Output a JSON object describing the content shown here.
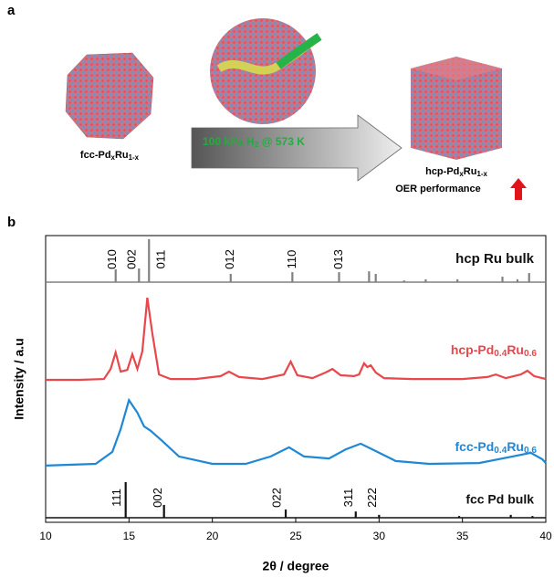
{
  "panel_a": {
    "label": "a",
    "left_particle": {
      "parts": [
        "fcc-Pd",
        "x",
        "Ru",
        "1-x"
      ]
    },
    "condition": {
      "parts": [
        "100 kPa H",
        "2",
        " @ 573 K"
      ]
    },
    "right_particle": {
      "parts": [
        "hcp-Pd",
        "x",
        "Ru",
        "1-x"
      ]
    },
    "note": "OER performance"
  },
  "chart_data": {
    "type": "xrd",
    "panel_label": "b",
    "xlabel": "2θ / degree",
    "ylabel": "Intensity / a.u",
    "xlim": [
      10,
      40
    ],
    "xticks": [
      10,
      15,
      20,
      25,
      30,
      35,
      40
    ],
    "ylim": [
      0,
      100
    ],
    "series": [
      {
        "name": "hcp Ru bulk",
        "color": "#808080",
        "type": "stick",
        "baseline": 84.3,
        "x": [
          14.2,
          15.6,
          16.2,
          21.1,
          24.8,
          27.6,
          29.4,
          29.8,
          31.5,
          32.8,
          34.7,
          37.4,
          38.3,
          39.0
        ],
        "values": [
          88.8,
          89.1,
          99.4,
          87.2,
          87.8,
          87.8,
          88.1,
          87.2,
          84.9,
          85.3,
          85.3,
          86.2,
          85.3,
          87.5
        ],
        "labels": [
          "010",
          "002",
          "011",
          "012",
          "110",
          "013",
          null,
          null,
          null,
          null,
          null,
          null,
          null,
          null
        ]
      },
      {
        "name": "hcp-Pd0.4Ru0.6",
        "color": "#e8474c",
        "type": "line",
        "x": [
          10,
          12,
          13.5,
          13.9,
          14.2,
          14.5,
          14.9,
          15.2,
          15.5,
          15.8,
          16.1,
          16.4,
          16.8,
          17.5,
          19,
          20.5,
          21,
          21.6,
          23,
          24.3,
          24.7,
          25.1,
          26,
          26.8,
          27.2,
          27.7,
          28.5,
          28.8,
          29.1,
          29.3,
          29.5,
          29.8,
          30.3,
          32,
          35,
          36.5,
          37,
          37.6,
          38.5,
          38.9,
          39.3,
          40
        ],
        "values": [
          50.0,
          50.0,
          50.3,
          53.8,
          59.6,
          52.9,
          53.5,
          59.0,
          53.8,
          59.9,
          78.8,
          66.3,
          51.9,
          50.3,
          50.3,
          51.3,
          52.9,
          51.0,
          50.3,
          51.9,
          56.4,
          51.6,
          50.6,
          52.6,
          53.8,
          51.6,
          51.3,
          51.9,
          55.8,
          54.5,
          55.1,
          52.6,
          50.6,
          50.3,
          50.3,
          51.0,
          51.9,
          50.6,
          51.9,
          53.2,
          51.3,
          50.3
        ]
      },
      {
        "name": "fcc-Pd0.4Ru0.6",
        "color": "#1e88d6",
        "type": "line",
        "x": [
          10,
          13,
          14,
          14.5,
          15,
          15.5,
          15.9,
          16.3,
          17,
          18,
          20,
          22,
          23.5,
          24.6,
          25.5,
          27,
          28,
          28.9,
          29.8,
          31,
          33,
          36,
          38,
          39.1,
          39.8,
          40
        ],
        "values": [
          19.9,
          20.5,
          24.7,
          32.7,
          42.9,
          38.5,
          33.7,
          32.1,
          28.5,
          23.1,
          20.5,
          20.5,
          23.1,
          26.3,
          23.1,
          22.4,
          25.6,
          27.6,
          25.0,
          21.5,
          20.5,
          20.8,
          23.1,
          24.4,
          22.1,
          20.8
        ]
      },
      {
        "name": "fcc Pd bulk",
        "color": "#111111",
        "type": "stick",
        "baseline": 1.6,
        "x": [
          14.8,
          17.1,
          24.4,
          28.6,
          30.0,
          34.8,
          37.9,
          39.2
        ],
        "values": [
          14.1,
          6.1,
          4.5,
          3.8,
          2.6,
          2.2,
          2.6,
          2.2
        ],
        "labels": [
          "111",
          "002",
          "022",
          "311",
          "222",
          null,
          null,
          null
        ]
      }
    ]
  }
}
